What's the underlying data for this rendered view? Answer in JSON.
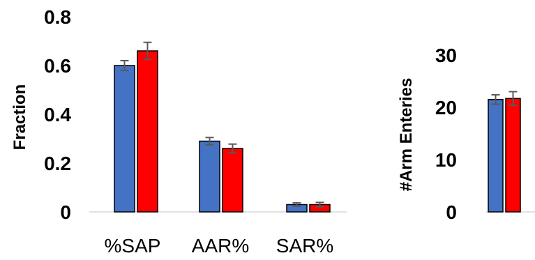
{
  "chart_data": [
    {
      "type": "bar",
      "categories": [
        "%SAP",
        "AAR%",
        "SAR%"
      ],
      "series": [
        {
          "color": "#4472C4",
          "values": [
            0.6,
            0.29,
            0.03
          ],
          "errors": [
            0.02,
            0.015,
            0.007
          ]
        },
        {
          "color": "#FF0000",
          "values": [
            0.66,
            0.26,
            0.03
          ],
          "errors": [
            0.035,
            0.018,
            0.009
          ]
        }
      ],
      "ylabel": "Fraction",
      "ylim": [
        0,
        0.8
      ],
      "yticks": [
        "0",
        "0.2",
        "0.4",
        "0.6",
        "0.8"
      ],
      "grid": false,
      "error_bar_color": "#595959"
    },
    {
      "type": "bar",
      "categories": [
        ""
      ],
      "series": [
        {
          "color": "#4472C4",
          "values": [
            21.5
          ],
          "errors": [
            0.9
          ]
        },
        {
          "color": "#FF0000",
          "values": [
            21.7
          ],
          "errors": [
            1.3
          ]
        }
      ],
      "ylabel": "#Arm  Enteries",
      "ylim": [
        0,
        30
      ],
      "yticks": [
        "0",
        "10",
        "20",
        "30"
      ],
      "grid": false,
      "error_bar_color": "#595959"
    }
  ]
}
